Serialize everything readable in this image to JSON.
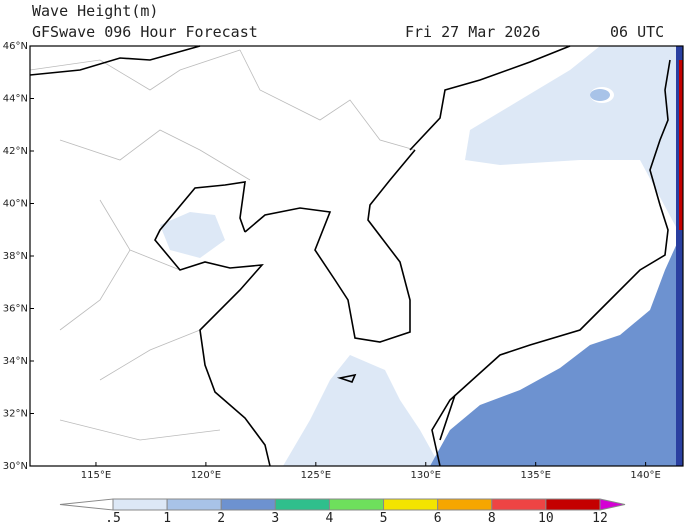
{
  "header": {
    "title": "Wave Height(m)",
    "subtitle": "GFSwave 096 Hour Forecast",
    "date": "Fri 27 Mar 2026",
    "time": "06 UTC"
  },
  "map": {
    "lon_range": [
      112,
      141.7
    ],
    "lat_range": [
      30,
      46
    ],
    "lon_ticks": [
      {
        "value": 115,
        "label": "115°E"
      },
      {
        "value": 120,
        "label": "120°E"
      },
      {
        "value": 125,
        "label": "125°E"
      },
      {
        "value": 130,
        "label": "130°E"
      },
      {
        "value": 135,
        "label": "135°E"
      },
      {
        "value": 140,
        "label": "140°E"
      }
    ],
    "lat_ticks": [
      {
        "value": 46,
        "label": "46°N"
      },
      {
        "value": 44,
        "label": "44°N"
      },
      {
        "value": 42,
        "label": "42°N"
      },
      {
        "value": 40,
        "label": "40°N"
      },
      {
        "value": 38,
        "label": "38°N"
      },
      {
        "value": 36,
        "label": "36°N"
      },
      {
        "value": 34,
        "label": "34°N"
      },
      {
        "value": 32,
        "label": "32°N"
      },
      {
        "value": 30,
        "label": "30°N"
      }
    ]
  },
  "colorbar": {
    "levels": [
      {
        "value": 0.5,
        "label": ".5"
      },
      1,
      2,
      3,
      4,
      5,
      6,
      8,
      10,
      12
    ],
    "colors": [
      "#ffffff",
      "#dde8f6",
      "#a8c3e8",
      "#6d92d0",
      "#2fbf8c",
      "#6ee05c",
      "#f3e400",
      "#f6a600",
      "#ee4444",
      "#c40000",
      "#d400d4"
    ]
  }
}
